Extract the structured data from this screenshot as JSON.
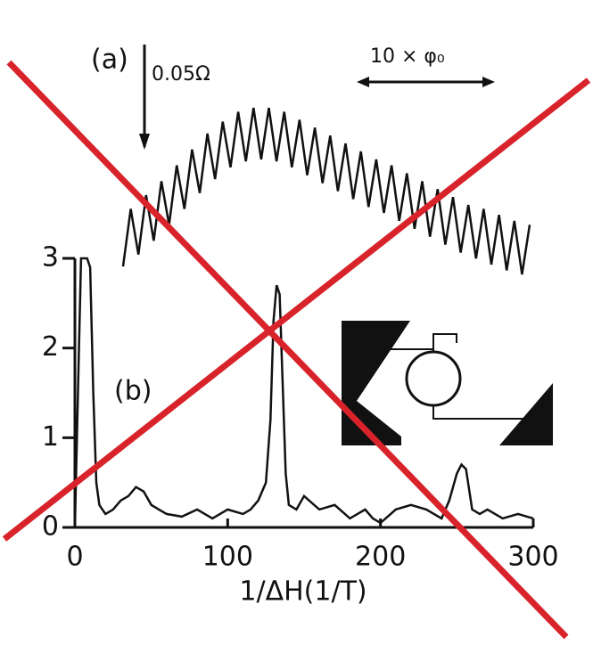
{
  "chart_data": [
    {
      "type": "line",
      "label": "(a)",
      "annotations": [
        "0.05Ω",
        "10 × φ₀"
      ],
      "color": "#111111",
      "values": [
        0.014,
        0.043,
        0.02,
        0.05,
        0.027,
        0.057,
        0.035,
        0.065,
        0.043,
        0.073,
        0.051,
        0.081,
        0.058,
        0.087,
        0.064,
        0.092,
        0.067,
        0.094,
        0.068,
        0.094,
        0.067,
        0.092,
        0.064,
        0.088,
        0.06,
        0.084,
        0.056,
        0.08,
        0.052,
        0.076,
        0.048,
        0.072,
        0.044,
        0.068,
        0.041,
        0.065,
        0.037,
        0.061,
        0.033,
        0.057,
        0.029,
        0.053,
        0.025,
        0.049,
        0.021,
        0.045,
        0.018,
        0.043,
        0.015,
        0.04,
        0.012,
        0.037,
        0.01,
        0.035
      ]
    },
    {
      "type": "line",
      "label": "(b)",
      "xlabel": "1/ΔH(1/T)",
      "color": "#111111",
      "xlim": [
        0,
        300
      ],
      "ylim": [
        0,
        3
      ],
      "xticks": [
        0,
        100,
        200,
        300
      ],
      "yticks": [
        0,
        1,
        2,
        3
      ],
      "x": [
        0,
        2,
        4,
        6,
        8,
        10,
        12,
        14,
        16,
        18,
        20,
        25,
        30,
        35,
        40,
        45,
        50,
        55,
        60,
        70,
        80,
        90,
        100,
        110,
        115,
        120,
        125,
        128,
        130,
        132,
        134,
        136,
        138,
        140,
        145,
        150,
        160,
        170,
        180,
        190,
        195,
        200,
        210,
        220,
        230,
        240,
        245,
        250,
        253,
        256,
        260,
        265,
        270,
        280,
        290,
        300
      ],
      "values": [
        0,
        1.5,
        3,
        3,
        3,
        2.9,
        1.5,
        0.5,
        0.25,
        0.2,
        0.15,
        0.2,
        0.3,
        0.35,
        0.45,
        0.4,
        0.25,
        0.2,
        0.15,
        0.12,
        0.2,
        0.1,
        0.2,
        0.15,
        0.2,
        0.3,
        0.5,
        1.2,
        2.3,
        2.7,
        2.6,
        1.6,
        0.6,
        0.25,
        0.2,
        0.35,
        0.2,
        0.25,
        0.1,
        0.2,
        0.1,
        0.05,
        0.2,
        0.25,
        0.2,
        0.1,
        0.3,
        0.6,
        0.7,
        0.65,
        0.2,
        0.15,
        0.2,
        0.1,
        0.15,
        0.1
      ]
    }
  ]
}
